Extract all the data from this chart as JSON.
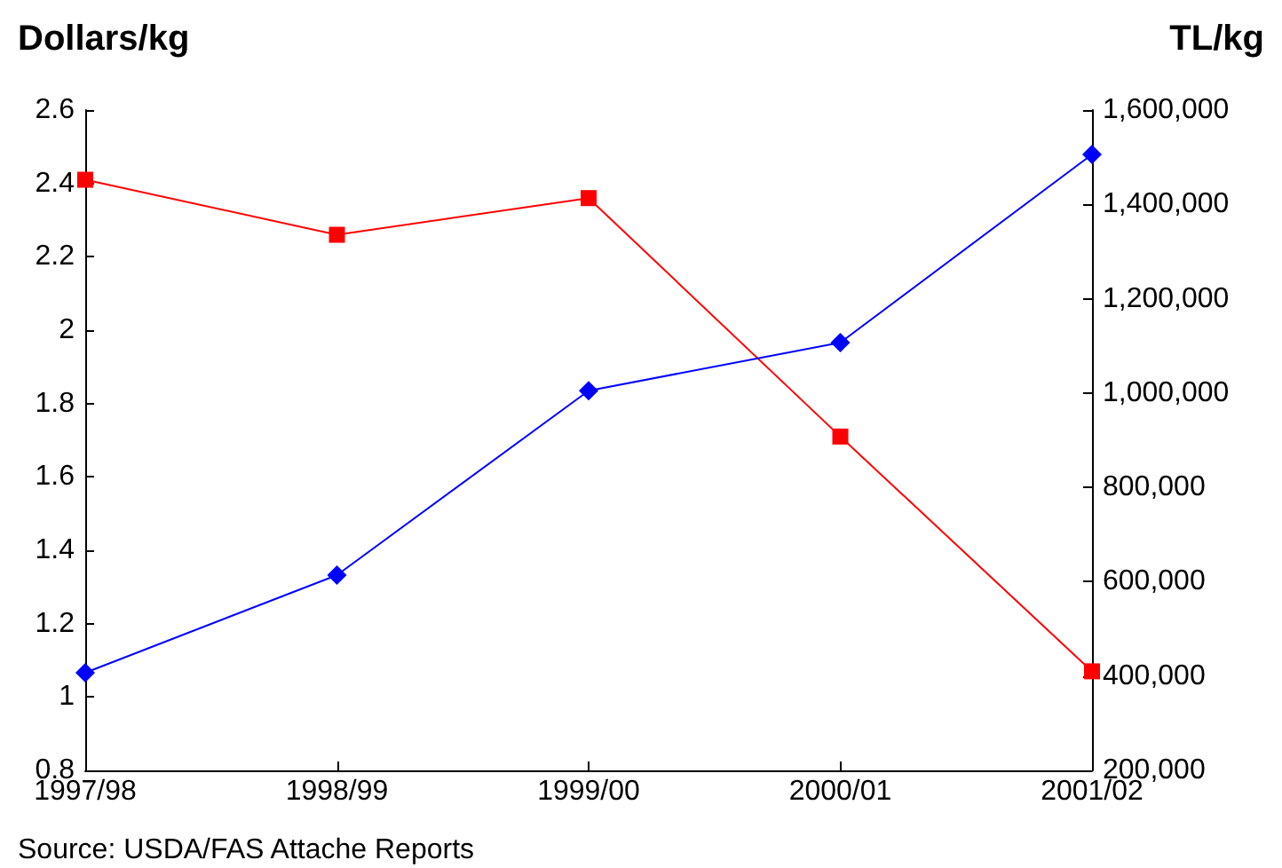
{
  "chart_data": {
    "type": "line",
    "ylabel": "Dollars/kg",
    "y2label": "TL/kg",
    "categories": [
      "1997/98",
      "1998/99",
      "1999/00",
      "2000/01",
      "2001/02"
    ],
    "series": [
      {
        "color": "#ff0000",
        "marker": "square",
        "values": [
          2.41,
          2.26,
          2.36,
          1.71,
          1.07
        ]
      },
      {
        "color": "#0000ff",
        "marker": "diamond",
        "axis": "y2",
        "values": [
          407000,
          614000,
          1005000,
          1107000,
          1506000
        ]
      }
    ],
    "ylim": [
      0.8,
      2.6
    ],
    "yticks": [
      0.8,
      1,
      1.2,
      1.4,
      1.6,
      1.8,
      2,
      2.2,
      2.4,
      2.6
    ],
    "y2lim": [
      200000,
      1600000
    ],
    "y2ticks": [
      {
        "value": 200000,
        "label": "200,000"
      },
      {
        "value": 400000,
        "label": "400,000"
      },
      {
        "value": 600000,
        "label": "600,000"
      },
      {
        "value": 800000,
        "label": "800,000"
      },
      {
        "value": 1000000,
        "label": "1,000,000"
      },
      {
        "value": 1200000,
        "label": "1,200,000"
      },
      {
        "value": 1400000,
        "label": "1,400,000"
      },
      {
        "value": 1600000,
        "label": "1,600,000"
      }
    ],
    "grid": false,
    "line_style": "solid",
    "annotations": [
      "Source: USDA/FAS Attache Reports"
    ]
  }
}
